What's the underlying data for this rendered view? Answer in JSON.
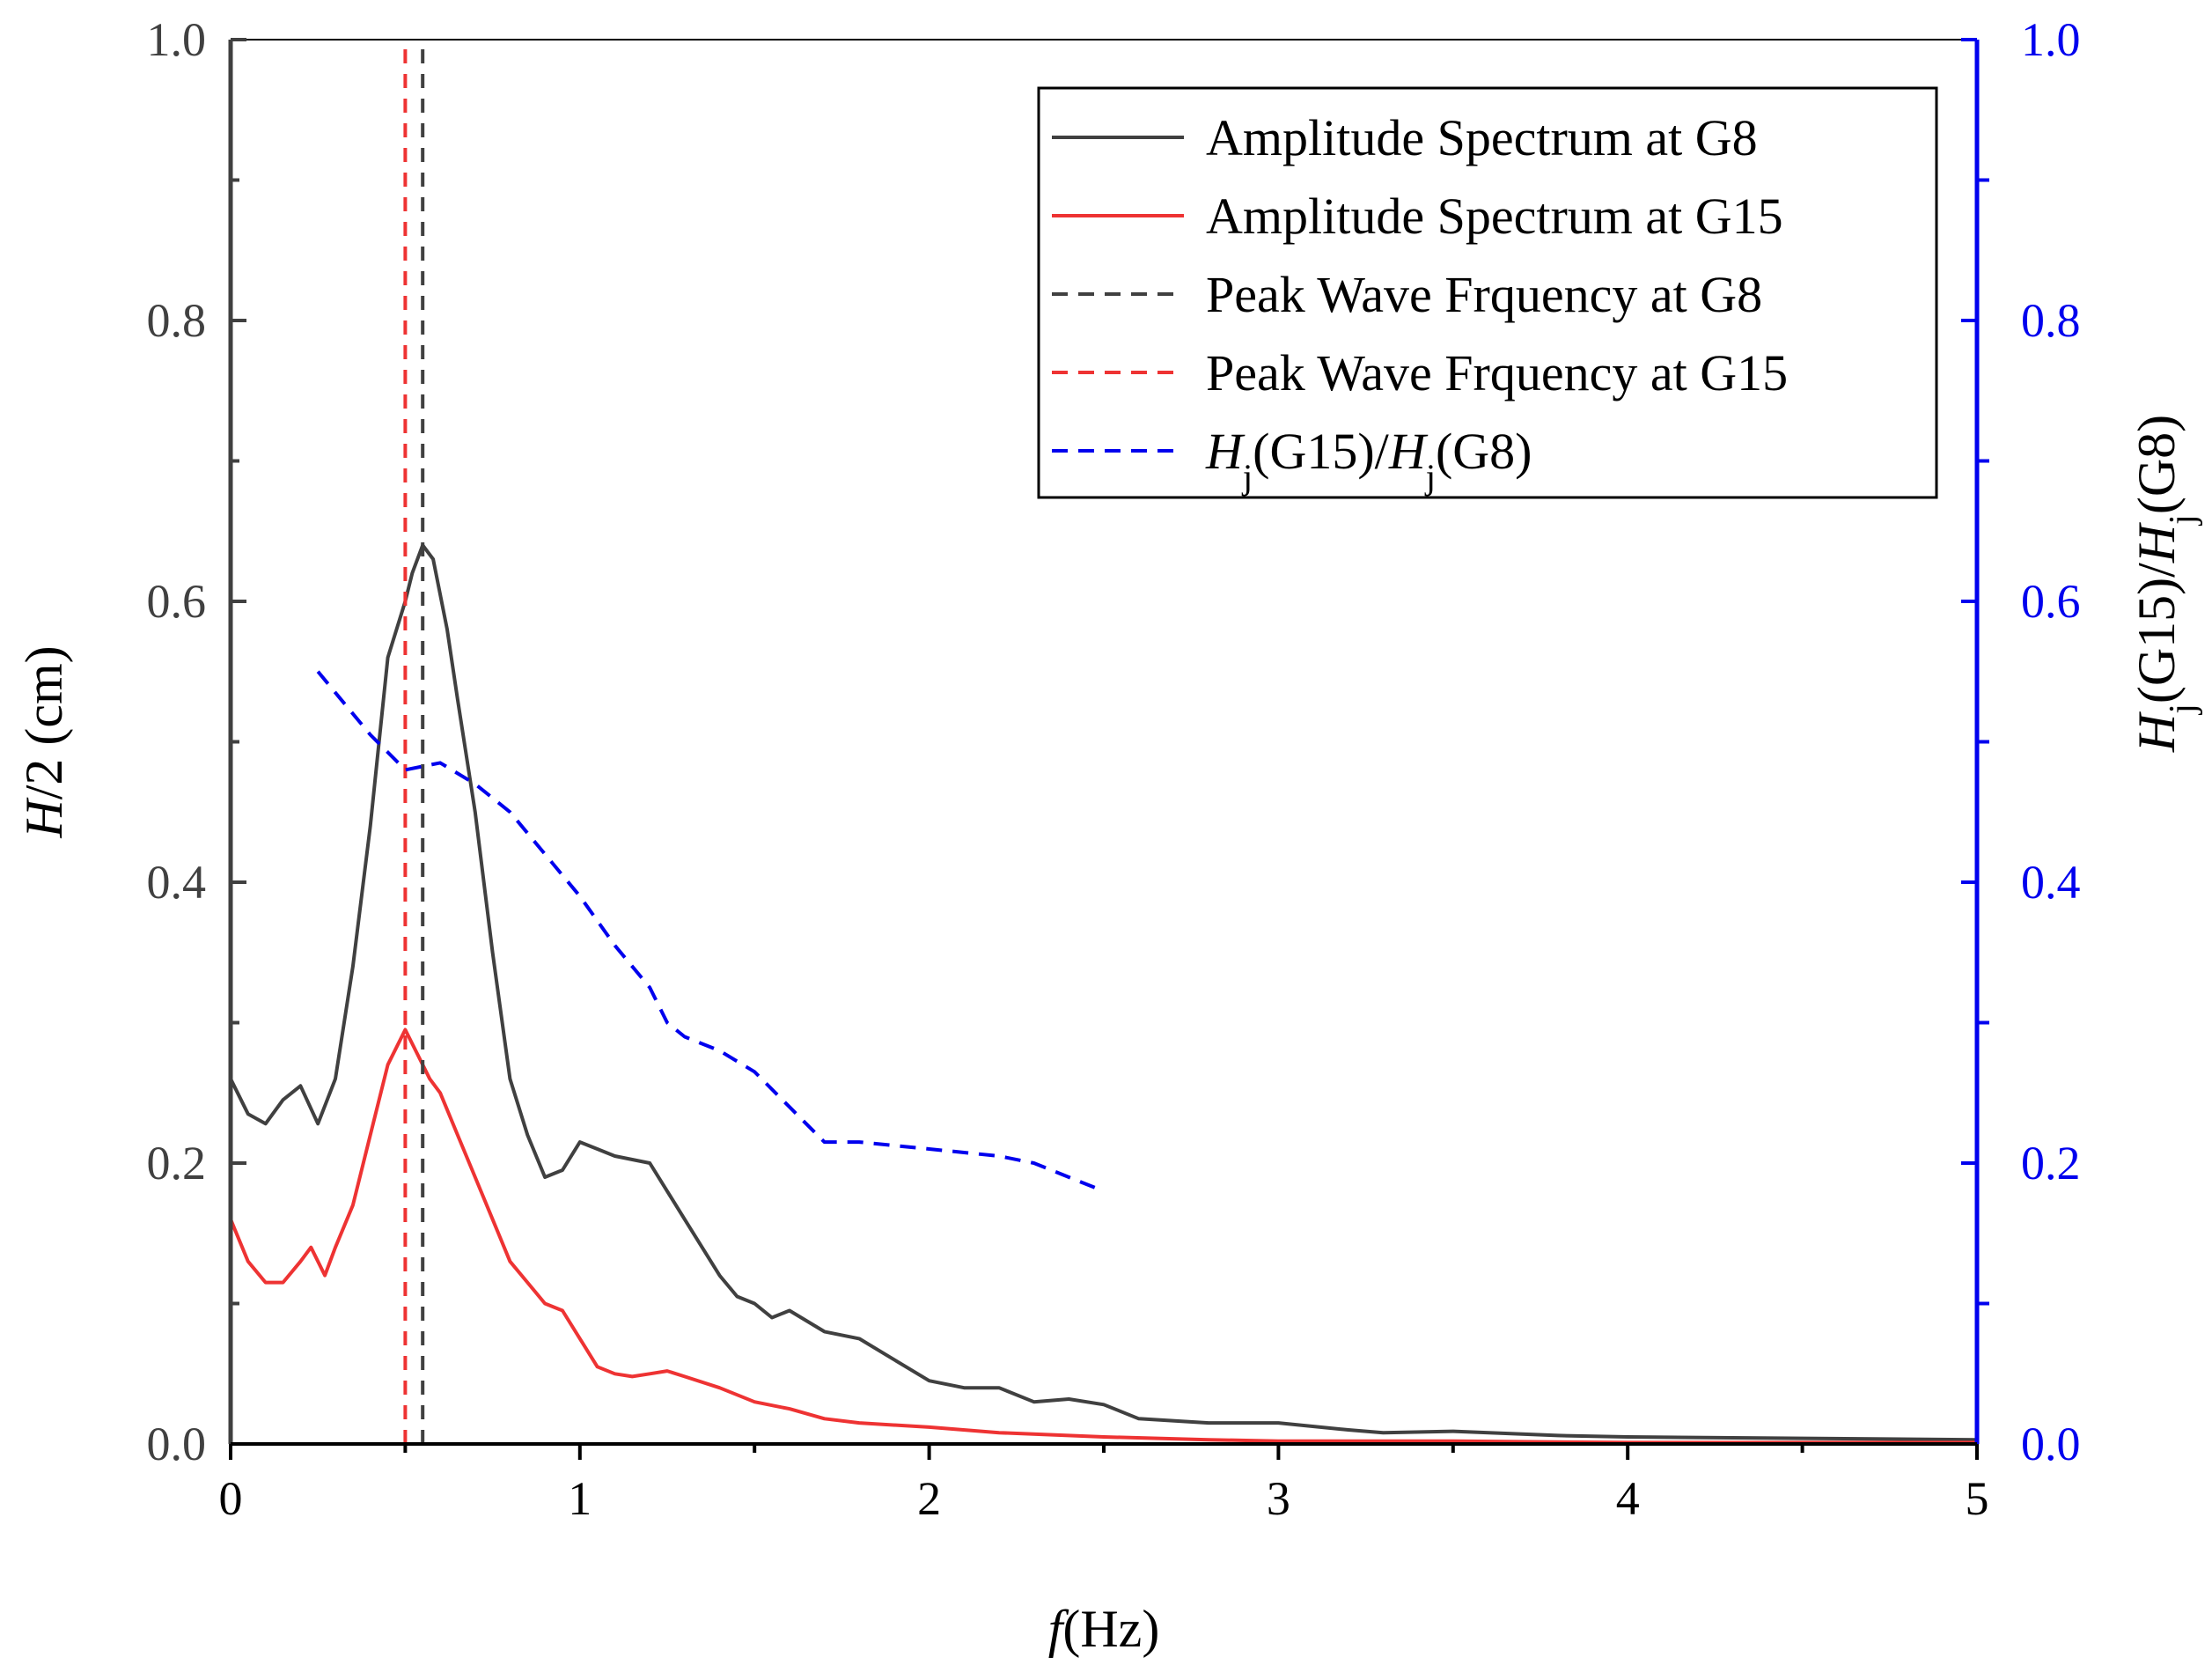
{
  "chart_data": {
    "type": "line",
    "x_axis": {
      "label_italic": "f",
      "label_rest": "(Hz)",
      "range": [
        0,
        5
      ],
      "ticks": [
        "0",
        "1",
        "2",
        "3",
        "4",
        "5"
      ],
      "minor_step": 0.5
    },
    "y_left": {
      "label_italic": "H",
      "label_rest": "/2 (cm)",
      "range": [
        0,
        1
      ],
      "ticks": [
        "0.0",
        "0.2",
        "0.4",
        "0.6",
        "0.8",
        "1.0"
      ],
      "color": "#404040"
    },
    "y_right": {
      "label_parts": [
        {
          "t": "H",
          "style": "italic"
        },
        {
          "t": "j",
          "style": "sub"
        },
        {
          "t": "(G15)/",
          "style": "normal"
        },
        {
          "t": "H",
          "style": "italic"
        },
        {
          "t": "j",
          "style": "sub"
        },
        {
          "t": "(G8)",
          "style": "normal"
        }
      ],
      "range": [
        0,
        1
      ],
      "ticks": [
        "0.0",
        "0.2",
        "0.4",
        "0.6",
        "0.8",
        "1.0"
      ],
      "color": "#0000ee"
    },
    "legend_position": "top-right",
    "series": [
      {
        "name": "Amplitude Spectrum at G8",
        "axis": "left",
        "color": "#404040",
        "dash": "solid",
        "x": [
          0,
          0.05,
          0.1,
          0.15,
          0.2,
          0.25,
          0.3,
          0.35,
          0.4,
          0.45,
          0.5,
          0.52,
          0.55,
          0.58,
          0.62,
          0.65,
          0.7,
          0.75,
          0.8,
          0.85,
          0.9,
          0.95,
          1.0,
          1.05,
          1.1,
          1.2,
          1.25,
          1.3,
          1.4,
          1.45,
          1.5,
          1.55,
          1.6,
          1.7,
          1.8,
          1.9,
          2.0,
          2.1,
          2.2,
          2.3,
          2.4,
          2.5,
          2.6,
          2.8,
          3.0,
          3.2,
          3.3,
          3.5,
          3.8,
          4.0,
          4.5,
          5.0
        ],
        "y": [
          0.26,
          0.235,
          0.228,
          0.245,
          0.255,
          0.228,
          0.26,
          0.34,
          0.44,
          0.56,
          0.6,
          0.62,
          0.64,
          0.63,
          0.58,
          0.53,
          0.45,
          0.35,
          0.26,
          0.22,
          0.19,
          0.195,
          0.215,
          0.21,
          0.205,
          0.2,
          0.18,
          0.16,
          0.12,
          0.105,
          0.1,
          0.09,
          0.095,
          0.08,
          0.075,
          0.06,
          0.045,
          0.04,
          0.04,
          0.03,
          0.032,
          0.028,
          0.018,
          0.015,
          0.015,
          0.01,
          0.008,
          0.009,
          0.006,
          0.005,
          0.004,
          0.003
        ]
      },
      {
        "name": "Amplitude Spectrum at G15",
        "axis": "left",
        "color": "#ee3333",
        "dash": "solid",
        "x": [
          0,
          0.05,
          0.1,
          0.15,
          0.2,
          0.23,
          0.27,
          0.3,
          0.35,
          0.4,
          0.45,
          0.5,
          0.53,
          0.57,
          0.6,
          0.65,
          0.7,
          0.75,
          0.8,
          0.85,
          0.9,
          0.95,
          1.0,
          1.05,
          1.1,
          1.15,
          1.2,
          1.25,
          1.3,
          1.4,
          1.5,
          1.6,
          1.7,
          1.8,
          2.0,
          2.2,
          2.5,
          2.8,
          3.0,
          3.5,
          4.0,
          4.5,
          5.0
        ],
        "y": [
          0.16,
          0.13,
          0.115,
          0.115,
          0.13,
          0.14,
          0.12,
          0.14,
          0.17,
          0.22,
          0.27,
          0.295,
          0.28,
          0.26,
          0.25,
          0.22,
          0.19,
          0.16,
          0.13,
          0.115,
          0.1,
          0.095,
          0.075,
          0.055,
          0.05,
          0.048,
          0.05,
          0.052,
          0.048,
          0.04,
          0.03,
          0.025,
          0.018,
          0.015,
          0.012,
          0.008,
          0.005,
          0.003,
          0.002,
          0.002,
          0.001,
          0.001,
          0.001
        ]
      },
      {
        "name": "Peak Wave Frquency at G8",
        "axis": "left",
        "color": "#404040",
        "dash": "dashed",
        "x": [
          0.55,
          0.55
        ],
        "y": [
          0,
          1
        ]
      },
      {
        "name": "Peak Wave Frquency at G15",
        "axis": "left",
        "color": "#ee3333",
        "dash": "dashed",
        "x": [
          0.5,
          0.5
        ],
        "y": [
          0,
          1
        ]
      },
      {
        "name_parts": [
          {
            "t": "H",
            "style": "italic"
          },
          {
            "t": "j",
            "style": "sub"
          },
          {
            "t": "(G15)/",
            "style": "normal"
          },
          {
            "t": "H",
            "style": "italic"
          },
          {
            "t": "j",
            "style": "sub"
          },
          {
            "t": "(G8)",
            "style": "normal"
          }
        ],
        "axis": "right",
        "color": "#0000ee",
        "dash": "dashed",
        "x": [
          0.25,
          0.3,
          0.4,
          0.5,
          0.6,
          0.7,
          0.8,
          0.9,
          1.0,
          1.1,
          1.2,
          1.25,
          1.3,
          1.4,
          1.5,
          1.6,
          1.7,
          1.8,
          2.0,
          2.2,
          2.3,
          2.4,
          2.5
        ],
        "y": [
          0.55,
          0.535,
          0.505,
          0.48,
          0.485,
          0.47,
          0.45,
          0.42,
          0.39,
          0.355,
          0.325,
          0.3,
          0.29,
          0.28,
          0.265,
          0.24,
          0.215,
          0.215,
          0.21,
          0.205,
          0.2,
          0.19,
          0.18
        ]
      }
    ]
  }
}
